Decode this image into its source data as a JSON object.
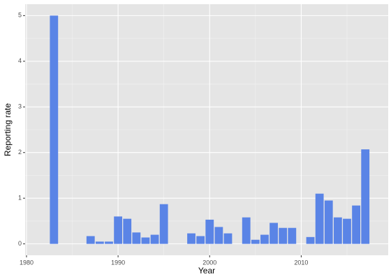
{
  "chart_data": {
    "type": "bar",
    "x_label": "Year",
    "y_label": "Reporting rate",
    "x": [
      1983,
      1987,
      1988,
      1989,
      1990,
      1991,
      1992,
      1993,
      1994,
      1995,
      1998,
      1999,
      2000,
      2001,
      2002,
      2004,
      2005,
      2006,
      2007,
      2008,
      2009,
      2011,
      2012,
      2013,
      2014,
      2015,
      2016,
      2017
    ],
    "values": [
      5.0,
      0.17,
      0.05,
      0.05,
      0.6,
      0.55,
      0.25,
      0.14,
      0.2,
      0.87,
      0.23,
      0.17,
      0.53,
      0.37,
      0.23,
      0.58,
      0.09,
      0.2,
      0.46,
      0.35,
      0.35,
      0.15,
      1.1,
      0.95,
      0.58,
      0.55,
      0.84,
      2.07
    ],
    "color": "#5a84e6",
    "xlim": [
      1979.85,
      2019.5
    ],
    "xticks": [
      1980,
      1990,
      2000,
      2010
    ],
    "ylim": [
      -0.25,
      5.25
    ],
    "yticks": [
      0,
      1,
      2,
      3,
      4,
      5
    ],
    "grid": true
  }
}
